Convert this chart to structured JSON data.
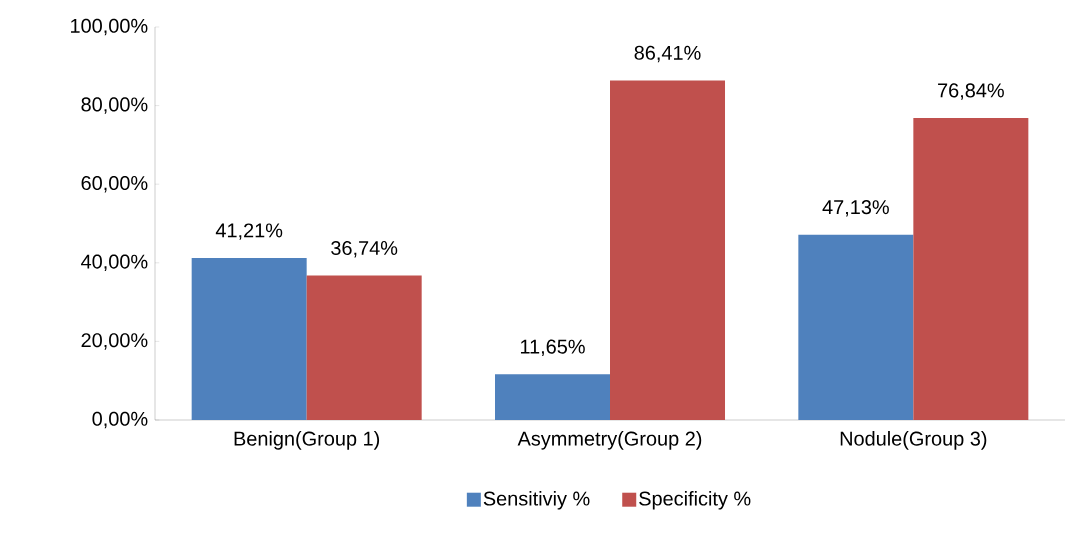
{
  "chart_data": {
    "type": "bar",
    "categories": [
      "Benign(Group 1)",
      "Asymmetry(Group 2)",
      "Nodule(Group 3)"
    ],
    "series": [
      {
        "name": "Sensitiviy %",
        "color": "#4f81bd",
        "values": [
          41.21,
          11.65,
          47.13
        ],
        "value_labels": [
          "41,21%",
          "11,65%",
          "47,13%"
        ]
      },
      {
        "name": "Specificity %",
        "color": "#c0504d",
        "values": [
          36.74,
          86.41,
          76.84
        ],
        "value_labels": [
          "36,74%",
          "86,41%",
          "76,84%"
        ]
      }
    ],
    "ylim": [
      0,
      100
    ],
    "yticks": [
      {
        "value": 0,
        "label": "0,00%"
      },
      {
        "value": 20,
        "label": "20,00%"
      },
      {
        "value": 40,
        "label": "40,00%"
      },
      {
        "value": 60,
        "label": "60,00%"
      },
      {
        "value": 80,
        "label": "80,00%"
      },
      {
        "value": 100,
        "label": "100,00%"
      }
    ],
    "grid": false,
    "legend": "bottom"
  }
}
